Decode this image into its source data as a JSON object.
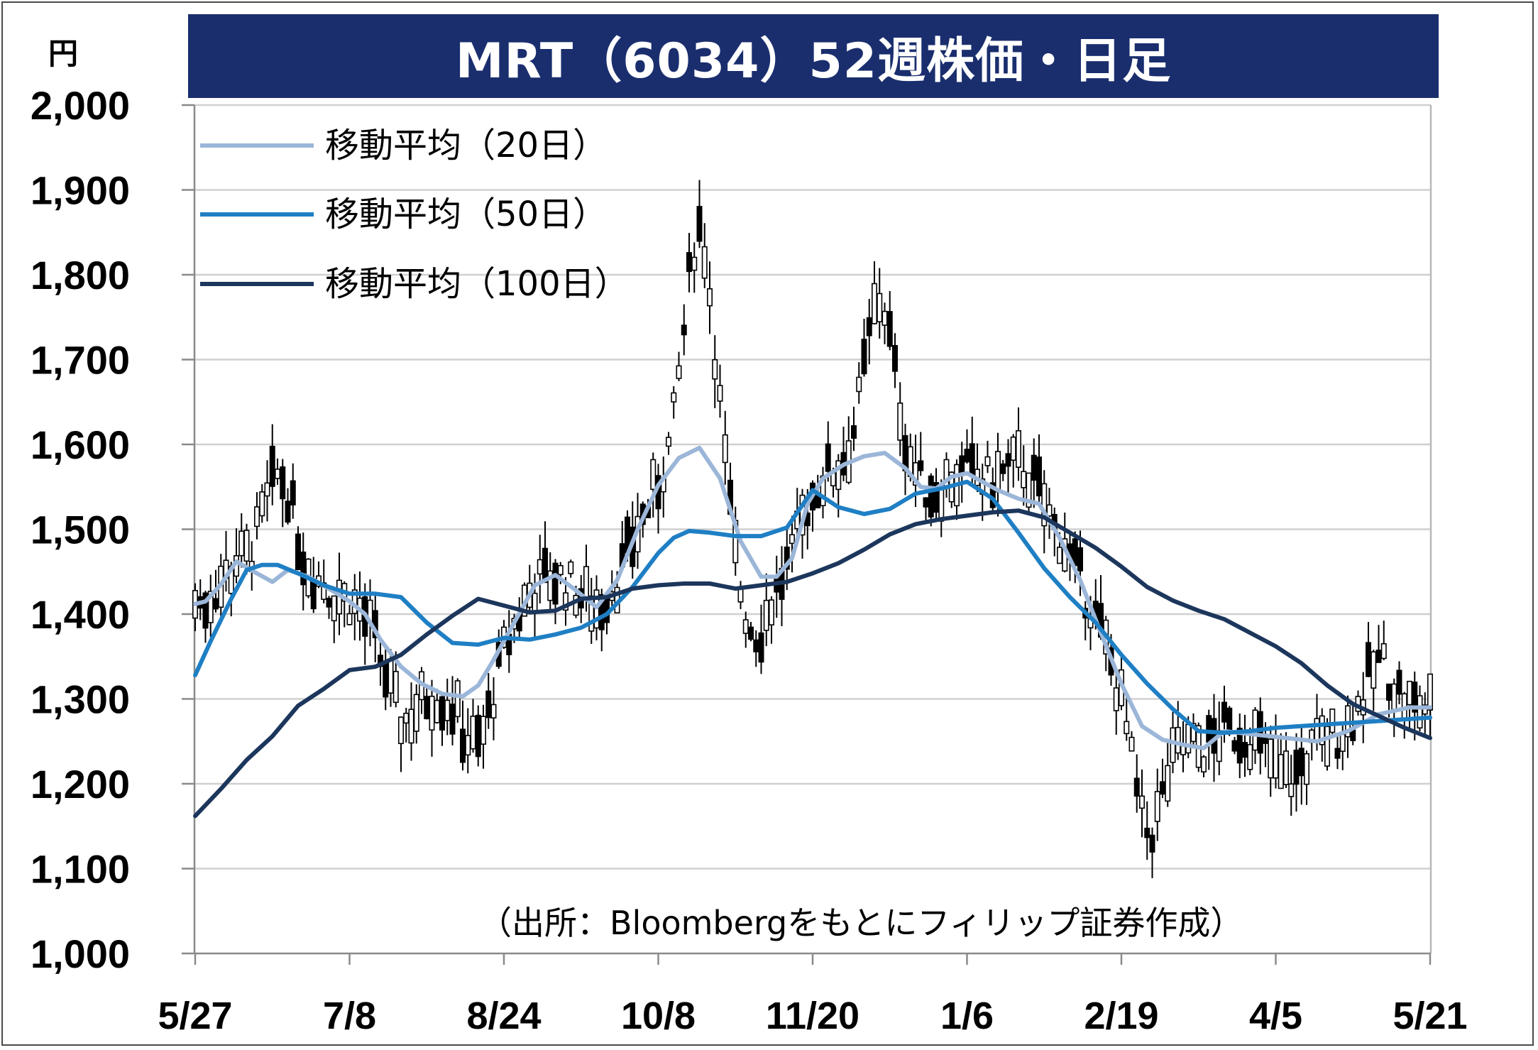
{
  "chart": {
    "title": "MRT（6034）52週株価・日足",
    "unit": "円",
    "source_note": "（出所：Bloombergをもとにフィリップ証券作成）"
  },
  "colors": {
    "title_bg": "#1a2e6e",
    "ma20": "#9bb6d8",
    "ma50": "#1f7fc4",
    "ma100": "#1c365c",
    "candle": "#000000",
    "grid": "#d0d0d0"
  },
  "chart_data": {
    "type": "line",
    "title": "MRT（6034）52週株価・日足",
    "ylabel": "円",
    "ylim": [
      1000,
      2000
    ],
    "y_ticks": [
      1000,
      1100,
      1200,
      1300,
      1400,
      1500,
      1600,
      1700,
      1800,
      1900,
      2000
    ],
    "y_tick_labels": [
      "1,000",
      "1,100",
      "1,200",
      "1,300",
      "1,400",
      "1,500",
      "1,600",
      "1,700",
      "1,800",
      "1,900",
      "2,000"
    ],
    "x_tick_labels": [
      "5/27",
      "7/8",
      "8/24",
      "10/8",
      "11/20",
      "1/6",
      "2/19",
      "4/5",
      "5/21"
    ],
    "x_range_trading_days": [
      0,
      240
    ],
    "x_tick_days": [
      0,
      30,
      60,
      90,
      120,
      150,
      180,
      210,
      240
    ],
    "grid": true,
    "legend_position": "top-left",
    "series": [
      {
        "name": "移動平均（20日）",
        "x": [
          0,
          2,
          5,
          8,
          12,
          15,
          18,
          22,
          26,
          30,
          33,
          36,
          40,
          44,
          48,
          52,
          55,
          58,
          62,
          66,
          70,
          74,
          78,
          82,
          86,
          90,
          94,
          98,
          102,
          106,
          110,
          113,
          116,
          119,
          122,
          126,
          130,
          134,
          138,
          141,
          144,
          147,
          150,
          153,
          156,
          160,
          164,
          168,
          172,
          176,
          180,
          184,
          188,
          192,
          196,
          200,
          206,
          212,
          218,
          224,
          230,
          236,
          240
        ],
        "y": [
          1412,
          1415,
          1435,
          1462,
          1448,
          1438,
          1452,
          1444,
          1430,
          1415,
          1400,
          1370,
          1338,
          1318,
          1306,
          1303,
          1316,
          1346,
          1390,
          1434,
          1446,
          1428,
          1408,
          1440,
          1500,
          1552,
          1584,
          1596,
          1560,
          1486,
          1444,
          1444,
          1466,
          1530,
          1560,
          1576,
          1586,
          1590,
          1572,
          1550,
          1548,
          1562,
          1566,
          1556,
          1546,
          1536,
          1530,
          1490,
          1440,
          1378,
          1318,
          1268,
          1252,
          1246,
          1242,
          1262,
          1258,
          1254,
          1250,
          1262,
          1282,
          1290,
          1290
        ]
      },
      {
        "name": "移動平均（50日）",
        "x": [
          0,
          3,
          7,
          10,
          13,
          16,
          20,
          25,
          30,
          35,
          40,
          45,
          50,
          55,
          60,
          65,
          70,
          75,
          80,
          85,
          90,
          93,
          96,
          100,
          105,
          110,
          115,
          120,
          125,
          130,
          135,
          140,
          145,
          150,
          155,
          160,
          165,
          170,
          175,
          180,
          185,
          190,
          195,
          200,
          205,
          210,
          215,
          220,
          225,
          230,
          235,
          240
        ],
        "y": [
          1328,
          1368,
          1418,
          1452,
          1458,
          1458,
          1448,
          1434,
          1424,
          1424,
          1420,
          1390,
          1366,
          1364,
          1372,
          1370,
          1376,
          1384,
          1400,
          1432,
          1472,
          1490,
          1498,
          1496,
          1492,
          1492,
          1502,
          1546,
          1526,
          1518,
          1524,
          1542,
          1548,
          1556,
          1536,
          1496,
          1454,
          1420,
          1390,
          1352,
          1318,
          1288,
          1262,
          1260,
          1262,
          1266,
          1268,
          1270,
          1272,
          1274,
          1276,
          1278
        ]
      },
      {
        "name": "移動平均（100日）",
        "x": [
          0,
          5,
          10,
          15,
          20,
          25,
          30,
          35,
          40,
          45,
          50,
          55,
          60,
          65,
          70,
          75,
          80,
          85,
          90,
          95,
          100,
          105,
          110,
          115,
          120,
          125,
          130,
          135,
          140,
          145,
          150,
          155,
          160,
          165,
          170,
          175,
          180,
          185,
          190,
          195,
          200,
          205,
          210,
          215,
          220,
          225,
          230,
          235,
          240
        ],
        "y": [
          1162,
          1194,
          1228,
          1256,
          1292,
          1312,
          1334,
          1338,
          1352,
          1376,
          1398,
          1418,
          1410,
          1402,
          1404,
          1418,
          1420,
          1430,
          1434,
          1436,
          1436,
          1430,
          1434,
          1438,
          1448,
          1460,
          1476,
          1494,
          1506,
          1512,
          1516,
          1520,
          1522,
          1514,
          1496,
          1478,
          1456,
          1432,
          1416,
          1404,
          1394,
          1378,
          1362,
          1342,
          1316,
          1294,
          1280,
          1266,
          1254
        ]
      }
    ]
  }
}
